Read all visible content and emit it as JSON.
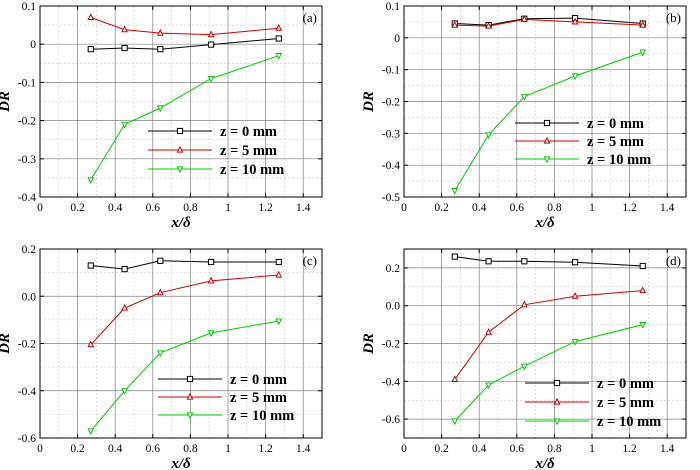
{
  "chart_data": [
    {
      "type": "line",
      "panel_label": "(a)",
      "xlabel": "x/δ",
      "ylabel": "DR",
      "xlim": [
        0,
        1.5
      ],
      "ylim": [
        -0.4,
        0.1
      ],
      "xticks": [
        0,
        0.2,
        0.4,
        0.6,
        0.8,
        1,
        1.2,
        1.4
      ],
      "xtick_labels": [
        "0",
        "0.2",
        "0.4",
        "0.6",
        "0.8",
        "1",
        "1.2",
        "1.4"
      ],
      "yticks": [
        -0.4,
        -0.3,
        -0.2,
        -0.1,
        0,
        0.1
      ],
      "ytick_labels": [
        "-0.4",
        "-0.3",
        "-0.2",
        "-0.1",
        "0",
        "0.1"
      ],
      "grid": true,
      "legend_position": "center-right",
      "x": [
        0.27,
        0.45,
        0.64,
        0.91,
        1.27
      ],
      "series": [
        {
          "name": "z = 0 mm",
          "color": "#000000",
          "marker": "square",
          "values": [
            -0.013,
            -0.01,
            -0.013,
            -0.001,
            0.015
          ]
        },
        {
          "name": "z = 5 mm",
          "color": "#cc0000",
          "marker": "triangle-up",
          "values": [
            0.07,
            0.038,
            0.029,
            0.025,
            0.042
          ]
        },
        {
          "name": "z = 10 mm",
          "color": "#00cc00",
          "marker": "triangle-down",
          "values": [
            -0.355,
            -0.21,
            -0.167,
            -0.09,
            -0.03
          ]
        }
      ]
    },
    {
      "type": "line",
      "panel_label": "(b)",
      "xlabel": "x/δ",
      "ylabel": "DR",
      "xlim": [
        0,
        1.5
      ],
      "ylim": [
        -0.5,
        0.1
      ],
      "xticks": [
        0,
        0.2,
        0.4,
        0.6,
        0.8,
        1,
        1.2,
        1.4
      ],
      "xtick_labels": [
        "0",
        "0.2",
        "0.4",
        "0.6",
        "0.8",
        "1",
        "1.2",
        "1.4"
      ],
      "yticks": [
        -0.5,
        -0.4,
        -0.3,
        -0.2,
        -0.1,
        0,
        0.1
      ],
      "ytick_labels": [
        "-0.5",
        "-0.4",
        "-0.3",
        "-0.2",
        "-0.1",
        "0",
        "0.1"
      ],
      "grid": true,
      "legend_position": "center-right",
      "x": [
        0.27,
        0.45,
        0.64,
        0.91,
        1.27
      ],
      "series": [
        {
          "name": "z = 0 mm",
          "color": "#000000",
          "marker": "square",
          "values": [
            0.045,
            0.04,
            0.06,
            0.062,
            0.045
          ]
        },
        {
          "name": "z = 5 mm",
          "color": "#cc0000",
          "marker": "triangle-up",
          "values": [
            0.04,
            0.037,
            0.058,
            0.05,
            0.04
          ]
        },
        {
          "name": "z = 10 mm",
          "color": "#00cc00",
          "marker": "triangle-down",
          "values": [
            -0.48,
            -0.305,
            -0.185,
            -0.12,
            -0.045
          ]
        }
      ]
    },
    {
      "type": "line",
      "panel_label": "(c)",
      "xlabel": "x/δ",
      "ylabel": "DR",
      "xlim": [
        0,
        1.5
      ],
      "ylim": [
        -0.6,
        0.2
      ],
      "xticks": [
        0,
        0.2,
        0.4,
        0.6,
        0.8,
        1,
        1.2,
        1.4
      ],
      "xtick_labels": [
        "0",
        "0.2",
        "0.4",
        "0.6",
        "0.8",
        "1",
        "1.2",
        "1.4"
      ],
      "yticks": [
        -0.6,
        -0.4,
        -0.2,
        0,
        0.2
      ],
      "ytick_labels": [
        "-0.6",
        "-0.4",
        "-0.2",
        "0.0",
        "0.2"
      ],
      "grid": true,
      "legend_position": "center-right",
      "x": [
        0.27,
        0.45,
        0.64,
        0.91,
        1.27
      ],
      "series": [
        {
          "name": "z = 0 mm",
          "color": "#000000",
          "marker": "square",
          "values": [
            0.13,
            0.115,
            0.15,
            0.145,
            0.145
          ]
        },
        {
          "name": "z = 5 mm",
          "color": "#cc0000",
          "marker": "triangle-up",
          "values": [
            -0.205,
            -0.05,
            0.015,
            0.065,
            0.09
          ]
        },
        {
          "name": "z = 10 mm",
          "color": "#00cc00",
          "marker": "triangle-down",
          "values": [
            -0.57,
            -0.4,
            -0.24,
            -0.155,
            -0.105
          ]
        }
      ]
    },
    {
      "type": "line",
      "panel_label": "(d)",
      "xlabel": "x/δ",
      "ylabel": "DR",
      "xlim": [
        0,
        1.5
      ],
      "ylim": [
        -0.7,
        0.3
      ],
      "xticks": [
        0,
        0.2,
        0.4,
        0.6,
        0.8,
        1,
        1.2,
        1.4
      ],
      "xtick_labels": [
        "0",
        "0.2",
        "0.4",
        "0.6",
        "0.8",
        "1",
        "1.2",
        "1.4"
      ],
      "yticks": [
        -0.6,
        -0.4,
        -0.2,
        0,
        0.2
      ],
      "ytick_labels": [
        "-0.6",
        "-0.4",
        "-0.2",
        "0.0",
        "0.2"
      ],
      "grid": true,
      "legend_position": "bottom-right",
      "x": [
        0.27,
        0.45,
        0.64,
        0.91,
        1.27
      ],
      "series": [
        {
          "name": "z = 0 mm",
          "color": "#000000",
          "marker": "square",
          "values": [
            0.26,
            0.235,
            0.235,
            0.23,
            0.21
          ]
        },
        {
          "name": "z = 5 mm",
          "color": "#cc0000",
          "marker": "triangle-up",
          "values": [
            -0.39,
            -0.14,
            0.005,
            0.05,
            0.08
          ]
        },
        {
          "name": "z = 10 mm",
          "color": "#00cc00",
          "marker": "triangle-down",
          "values": [
            -0.61,
            -0.42,
            -0.32,
            -0.19,
            -0.1
          ]
        }
      ]
    }
  ]
}
